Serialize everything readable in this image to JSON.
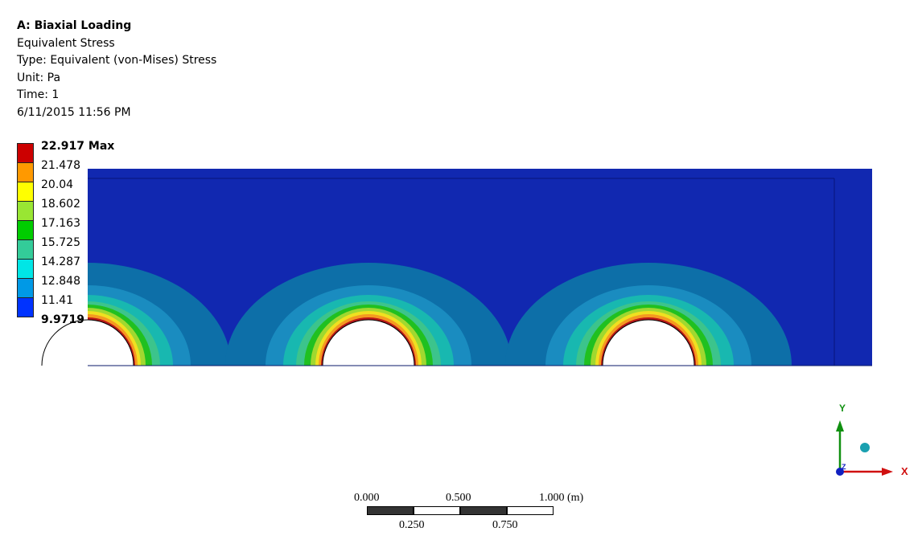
{
  "header": {
    "title": "A: Biaxial Loading",
    "result_name": "Equivalent Stress",
    "type_line": "Type: Equivalent (von-Mises) Stress",
    "unit_line": "Unit: Pa",
    "time_line": "Time: 1",
    "timestamp": "6/11/2015 11:56 PM"
  },
  "legend": {
    "levels": [
      {
        "label": "22.917 Max",
        "color": "#cc0000",
        "emphasis": true
      },
      {
        "label": "21.478",
        "color": "#ff9900",
        "emphasis": false
      },
      {
        "label": "20.04",
        "color": "#ffff00",
        "emphasis": false
      },
      {
        "label": "18.602",
        "color": "#99e633",
        "emphasis": false
      },
      {
        "label": "17.163",
        "color": "#00cc00",
        "emphasis": false
      },
      {
        "label": "15.725",
        "color": "#33cc99",
        "emphasis": false
      },
      {
        "label": "14.287",
        "color": "#00e6e6",
        "emphasis": false
      },
      {
        "label": "12.848",
        "color": "#0099e6",
        "emphasis": false
      },
      {
        "label": "11.41",
        "color": "#0033ff",
        "emphasis": false
      },
      {
        "label": "9.9719 Min",
        "color": "#0000cc",
        "emphasis": true
      }
    ]
  },
  "model": {
    "background_color": "#1128b0",
    "band_colors": [
      "#0d6fa8",
      "#1a8cc0",
      "#18b8b0",
      "#3cc48c",
      "#20c020",
      "#a0d830",
      "#f0e020",
      "#f59a20",
      "#b81818"
    ]
  },
  "scale_bar": {
    "top_labels": [
      "0.000",
      "0.500",
      "1.000 (m)"
    ],
    "bottom_labels": [
      "0.250",
      "0.750"
    ]
  },
  "triad": {
    "x_label": "X",
    "y_label": "Y",
    "z_label": "Z",
    "x_color": "#d01010",
    "y_color": "#109010",
    "z_color": "#1020c0"
  }
}
